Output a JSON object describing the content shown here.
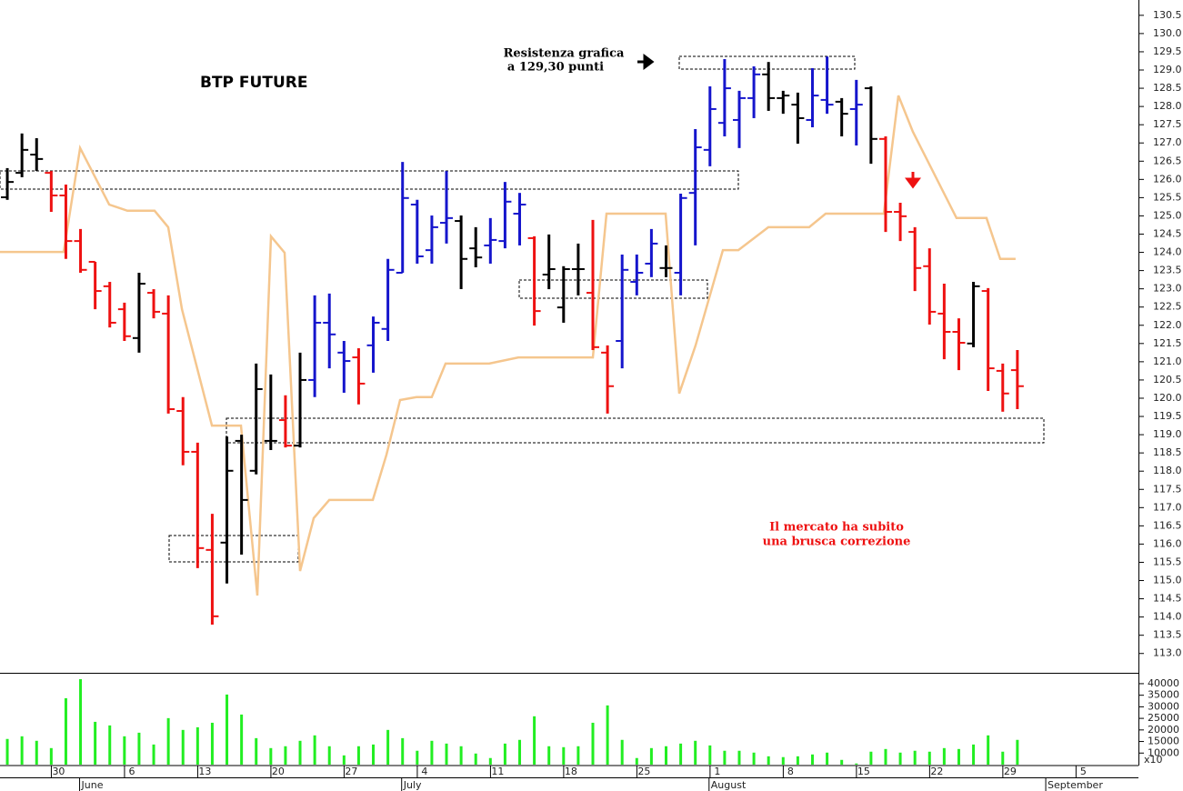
{
  "chart_data": [
    {
      "type": "ohlc",
      "title": "BTP FUTURE",
      "annotations": [
        {
          "lines": [
            "Resistenza grafica",
            "a 129,30 punti"
          ]
        },
        {
          "lines": [
            "Il mercato ha subito",
            "una brusca correzione"
          ]
        }
      ],
      "xlim": [
        -0.5,
        77.27
      ],
      "ylim": [
        112.47,
        130.92
      ],
      "yticks": [
        {
          "value": 113,
          "label": "113.0"
        },
        {
          "value": 113.5,
          "label": "113.5"
        },
        {
          "value": 114,
          "label": "114.0"
        },
        {
          "value": 114.5,
          "label": "114.5"
        },
        {
          "value": 115,
          "label": "115.0"
        },
        {
          "value": 115.5,
          "label": "115.5"
        },
        {
          "value": 116,
          "label": "116.0"
        },
        {
          "value": 116.5,
          "label": "116.5"
        },
        {
          "value": 117,
          "label": "117.0"
        },
        {
          "value": 117.5,
          "label": "117.5"
        },
        {
          "value": 118,
          "label": "118.0"
        },
        {
          "value": 118.5,
          "label": "118.5"
        },
        {
          "value": 119,
          "label": "119.0"
        },
        {
          "value": 119.5,
          "label": "119.5"
        },
        {
          "value": 120,
          "label": "120.0"
        },
        {
          "value": 120.5,
          "label": "120.5"
        },
        {
          "value": 121,
          "label": "121.0"
        },
        {
          "value": 121.5,
          "label": "121.5"
        },
        {
          "value": 122,
          "label": "122.0"
        },
        {
          "value": 122.5,
          "label": "122.5"
        },
        {
          "value": 123,
          "label": "123.0"
        },
        {
          "value": 123.5,
          "label": "123.5"
        },
        {
          "value": 124,
          "label": "124.0"
        },
        {
          "value": 124.5,
          "label": "124.5"
        },
        {
          "value": 125,
          "label": "125.0"
        },
        {
          "value": 125.5,
          "label": "125.5"
        },
        {
          "value": 126,
          "label": "126.0"
        },
        {
          "value": 126.5,
          "label": "126.5"
        },
        {
          "value": 127,
          "label": "127.0"
        },
        {
          "value": 127.5,
          "label": "127.5"
        },
        {
          "value": 128,
          "label": "128.0"
        },
        {
          "value": 128.5,
          "label": "128.5"
        },
        {
          "value": 129,
          "label": "129.0"
        },
        {
          "value": 129.5,
          "label": "129.5"
        },
        {
          "value": 130,
          "label": "130.0"
        },
        {
          "value": 130.5,
          "label": "130.5"
        }
      ],
      "xticks": [
        {
          "value": 4,
          "label": "30"
        },
        {
          "value": 9,
          "label": "6"
        },
        {
          "value": 14,
          "label": "13"
        },
        {
          "value": 19,
          "label": "20"
        },
        {
          "value": 24,
          "label": "27"
        },
        {
          "value": 29,
          "label": "4"
        },
        {
          "value": 34,
          "label": "11"
        },
        {
          "value": 39,
          "label": "18"
        },
        {
          "value": 44,
          "label": "25"
        },
        {
          "value": 49,
          "label": "1"
        },
        {
          "value": 54,
          "label": "8"
        },
        {
          "value": 59,
          "label": "15"
        },
        {
          "value": 64,
          "label": "22"
        },
        {
          "value": 69,
          "label": "29"
        },
        {
          "value": 74,
          "label": "5"
        }
      ],
      "months": [
        {
          "value": 5,
          "label": "June"
        },
        {
          "value": 27,
          "label": "July"
        },
        {
          "value": 48,
          "label": "August"
        },
        {
          "value": 71,
          "label": "September"
        }
      ],
      "open": [
        125.51,
        126.18,
        126.68,
        126.18,
        125.56,
        124.31,
        123.74,
        123.07,
        122.44,
        121.65,
        122.89,
        122.32,
        119.65,
        118.53,
        115.84,
        116.04,
        118.83,
        118.01,
        118.83,
        119.4,
        118.7,
        120.5,
        122.07,
        121.25,
        121.12,
        121.45,
        121.9,
        123.44,
        125.31,
        124.06,
        124.81,
        124.86,
        124.11,
        124.19,
        124.31,
        125.06,
        124.39,
        123.39,
        122.49,
        123.54,
        122.89,
        121.25,
        121.57,
        123.19,
        123.69,
        123.57,
        123.44,
        125.63,
        126.81,
        127.55,
        127.63,
        128.23,
        128.88,
        128.23,
        128.05,
        127.63,
        128.18,
        128.13,
        127.93,
        128.5,
        127.11,
        125.11,
        124.56,
        123.62,
        122.32,
        121.82,
        121.5,
        122.94,
        120.75,
        120.77
      ],
      "high": [
        126.31,
        127.26,
        127.13,
        126.23,
        125.86,
        124.64,
        123.74,
        123.19,
        122.62,
        123.44,
        122.99,
        122.82,
        120.03,
        118.78,
        116.83,
        118.95,
        119.0,
        120.95,
        120.65,
        120.08,
        121.25,
        122.82,
        122.87,
        121.57,
        121.37,
        122.24,
        123.82,
        126.48,
        125.44,
        125.01,
        126.23,
        125.01,
        124.69,
        124.94,
        125.93,
        125.63,
        124.44,
        124.49,
        123.62,
        124.24,
        124.89,
        121.45,
        123.94,
        123.94,
        124.64,
        124.19,
        125.61,
        127.38,
        128.55,
        129.3,
        128.43,
        129.1,
        129.22,
        128.43,
        128.38,
        129.05,
        129.37,
        128.23,
        128.73,
        128.55,
        127.18,
        125.36,
        124.69,
        124.11,
        123.14,
        122.19,
        123.19,
        123.02,
        120.95,
        121.32
      ],
      "low": [
        125.44,
        126.06,
        126.23,
        125.11,
        123.82,
        123.44,
        122.44,
        121.94,
        121.57,
        121.25,
        122.19,
        119.58,
        118.16,
        115.34,
        113.79,
        114.92,
        115.71,
        117.91,
        118.58,
        118.65,
        118.65,
        120.03,
        120.82,
        120.15,
        119.83,
        120.7,
        121.57,
        123.44,
        123.69,
        123.69,
        124.24,
        122.99,
        123.59,
        123.69,
        124.11,
        124.19,
        121.99,
        122.99,
        122.07,
        122.82,
        121.32,
        119.58,
        120.82,
        122.82,
        123.32,
        123.32,
        122.82,
        124.19,
        126.36,
        127.18,
        126.86,
        127.68,
        127.88,
        127.8,
        126.98,
        127.43,
        127.8,
        127.18,
        126.93,
        126.43,
        124.56,
        124.31,
        122.94,
        122.02,
        121.07,
        120.77,
        121.4,
        120.2,
        119.63,
        119.7
      ],
      "close": [
        125.93,
        126.81,
        126.56,
        125.56,
        124.31,
        123.52,
        122.94,
        122.07,
        121.7,
        123.14,
        122.37,
        119.7,
        118.53,
        115.89,
        114.02,
        118.01,
        117.21,
        120.25,
        118.83,
        118.7,
        120.5,
        122.07,
        121.75,
        121.02,
        120.4,
        122.07,
        123.52,
        125.49,
        123.89,
        124.69,
        124.94,
        123.82,
        123.86,
        124.34,
        125.39,
        125.31,
        122.39,
        123.54,
        123.54,
        123.54,
        121.4,
        120.33,
        123.52,
        123.44,
        124.24,
        123.57,
        125.49,
        126.88,
        127.93,
        128.5,
        128.23,
        128.88,
        128.23,
        128.3,
        127.68,
        128.3,
        128.05,
        127.8,
        128.05,
        127.11,
        125.11,
        124.99,
        123.57,
        122.37,
        121.82,
        121.52,
        123.07,
        120.82,
        120.13,
        120.33
      ],
      "bar_colors": [
        "#000000",
        "#000000",
        "#000000",
        "#ee1111",
        "#ee1111",
        "#ee1111",
        "#ee1111",
        "#ee1111",
        "#ee1111",
        "#000000",
        "#ee1111",
        "#ee1111",
        "#ee1111",
        "#ee1111",
        "#ee1111",
        "#000000",
        "#000000",
        "#000000",
        "#000000",
        "#ee1111",
        "#000000",
        "#1515cc",
        "#1515cc",
        "#1515cc",
        "#ee1111",
        "#1515cc",
        "#1515cc",
        "#1515cc",
        "#1515cc",
        "#1515cc",
        "#1515cc",
        "#000000",
        "#000000",
        "#1515cc",
        "#1515cc",
        "#1515cc",
        "#ee1111",
        "#000000",
        "#000000",
        "#000000",
        "#ee1111",
        "#ee1111",
        "#1515cc",
        "#1515cc",
        "#1515cc",
        "#000000",
        "#1515cc",
        "#1515cc",
        "#1515cc",
        "#1515cc",
        "#1515cc",
        "#1515cc",
        "#000000",
        "#000000",
        "#000000",
        "#1515cc",
        "#1515cc",
        "#000000",
        "#1515cc",
        "#000000",
        "#ee1111",
        "#ee1111",
        "#ee1111",
        "#ee1111",
        "#ee1111",
        "#ee1111",
        "#000000",
        "#ee1111",
        "#ee1111",
        "#ee1111"
      ],
      "overlay": {
        "color": "#f5c68e",
        "x": [
          -0.5,
          3.85,
          4.97,
          6.96,
          8.2,
          10.06,
          10.99,
          11.93,
          13.98,
          15.96,
          17.08,
          18.01,
          18.94,
          20.0,
          20.93,
          21.99,
          24.97,
          25.9,
          26.83,
          27.95,
          28.99,
          29.94,
          32.92,
          34.91,
          40.0,
          40.93,
          44.97,
          45.9,
          47.02,
          48.88,
          49.94,
          51.99,
          54.78,
          55.9,
          59.88,
          60.87,
          61.86,
          64.84,
          66.89,
          67.83,
          68.88
        ],
        "values": [
          124.01,
          124.01,
          126.86,
          125.31,
          125.14,
          125.14,
          124.69,
          122.44,
          119.25,
          119.25,
          114.59,
          124.44,
          123.99,
          115.26,
          116.71,
          117.21,
          117.21,
          118.45,
          119.95,
          120.03,
          120.03,
          120.95,
          120.95,
          121.12,
          121.12,
          125.06,
          125.06,
          120.13,
          121.45,
          124.06,
          124.06,
          124.69,
          124.69,
          125.06,
          125.06,
          128.3,
          127.31,
          124.94,
          124.94,
          123.82,
          123.82
        ]
      }
    },
    {
      "type": "bar",
      "color": "#22ee22",
      "unit_label": "x10",
      "xlim": [
        -0.5,
        77.27
      ],
      "ylim": [
        5000,
        44300
      ],
      "yticks": [
        10000,
        15000,
        20000,
        25000,
        30000,
        35000,
        40000
      ],
      "values": [
        16100,
        17250,
        15300,
        12150,
        33700,
        41950,
        23500,
        21950,
        17250,
        18800,
        13700,
        25100,
        20000,
        21150,
        23100,
        35300,
        26650,
        16450,
        12150,
        12950,
        15300,
        17650,
        12950,
        9000,
        12950,
        13700,
        20000,
        16450,
        11000,
        15300,
        14100,
        12950,
        9800,
        7850,
        14100,
        15700,
        25900,
        12950,
        12550,
        12950,
        23100,
        30600,
        15700,
        7850,
        12150,
        12950,
        14100,
        15300,
        13300,
        11000,
        11000,
        10200,
        8600,
        8250,
        8600,
        9400,
        10200,
        7050,
        5500,
        10600,
        11750,
        10200,
        11000,
        10600,
        12150,
        11750,
        13700,
        17650,
        10600,
        15700
      ]
    }
  ]
}
